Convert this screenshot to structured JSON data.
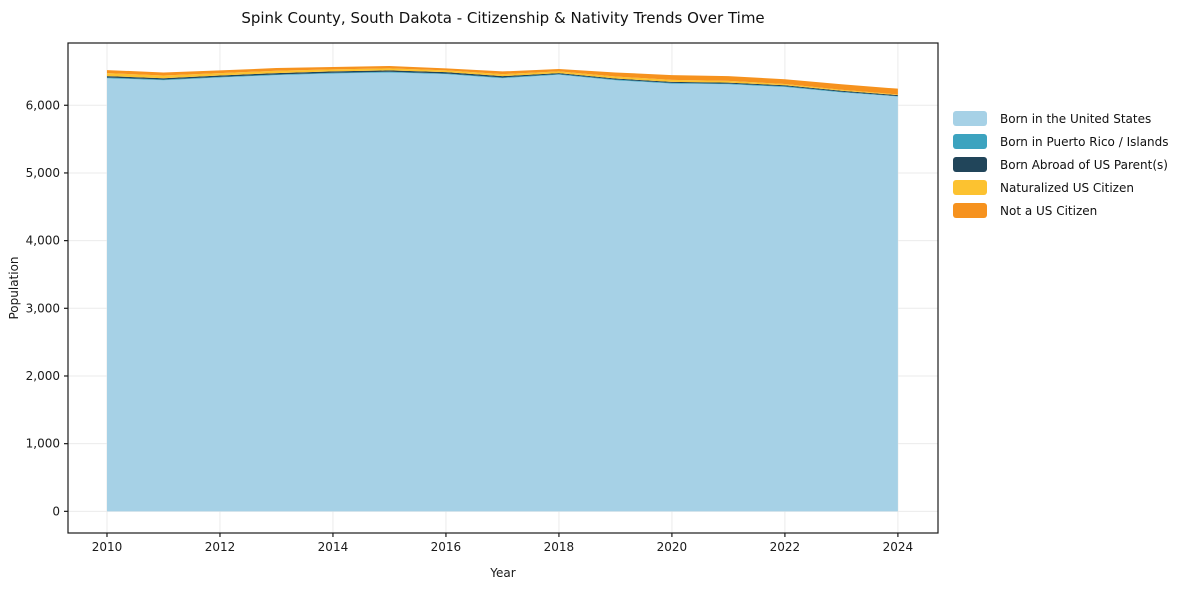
{
  "chart_data": {
    "type": "area",
    "stacked": true,
    "title": "Spink County, South Dakota - Citizenship & Nativity Trends Over Time",
    "xlabel": "Year",
    "ylabel": "Population",
    "x": [
      2010,
      2011,
      2012,
      2013,
      2014,
      2015,
      2016,
      2017,
      2018,
      2019,
      2020,
      2021,
      2022,
      2023,
      2024
    ],
    "series": [
      {
        "name": "Born in the United States",
        "color": "#a6d1e6",
        "values": [
          6400,
          6370,
          6410,
          6445,
          6470,
          6485,
          6460,
          6400,
          6450,
          6370,
          6320,
          6310,
          6270,
          6190,
          6130
        ]
      },
      {
        "name": "Born in Puerto Rico / Islands",
        "color": "#3ca3bf",
        "values": [
          10,
          10,
          10,
          10,
          10,
          10,
          10,
          10,
          10,
          10,
          10,
          10,
          10,
          10,
          5
        ]
      },
      {
        "name": "Born Abroad of US Parent(s)",
        "color": "#21455a",
        "values": [
          20,
          20,
          20,
          20,
          20,
          20,
          20,
          20,
          15,
          15,
          15,
          15,
          15,
          15,
          15
        ]
      },
      {
        "name": "Naturalized US Citizen",
        "color": "#fcc230",
        "values": [
          45,
          40,
          35,
          35,
          30,
          30,
          25,
          30,
          25,
          30,
          30,
          25,
          20,
          15,
          10
        ]
      },
      {
        "name": "Not a US Citizen",
        "color": "#f6921e",
        "values": [
          45,
          45,
          40,
          40,
          35,
          35,
          30,
          40,
          35,
          60,
          70,
          70,
          70,
          80,
          85
        ]
      }
    ],
    "xticks": [
      2010,
      2012,
      2014,
      2016,
      2018,
      2020,
      2022,
      2024
    ],
    "yticks": [
      0,
      1000,
      2000,
      3000,
      4000,
      5000,
      6000
    ],
    "xlim": [
      2009.31,
      2024.71
    ],
    "ylim": [
      -320,
      6920
    ],
    "grid": true,
    "legend_position": "right-outside",
    "colors": {
      "grid": "#ebebeb",
      "spine": "#1a1a1a",
      "tick_label": "#1a1a1a",
      "background": "#ffffff"
    }
  }
}
